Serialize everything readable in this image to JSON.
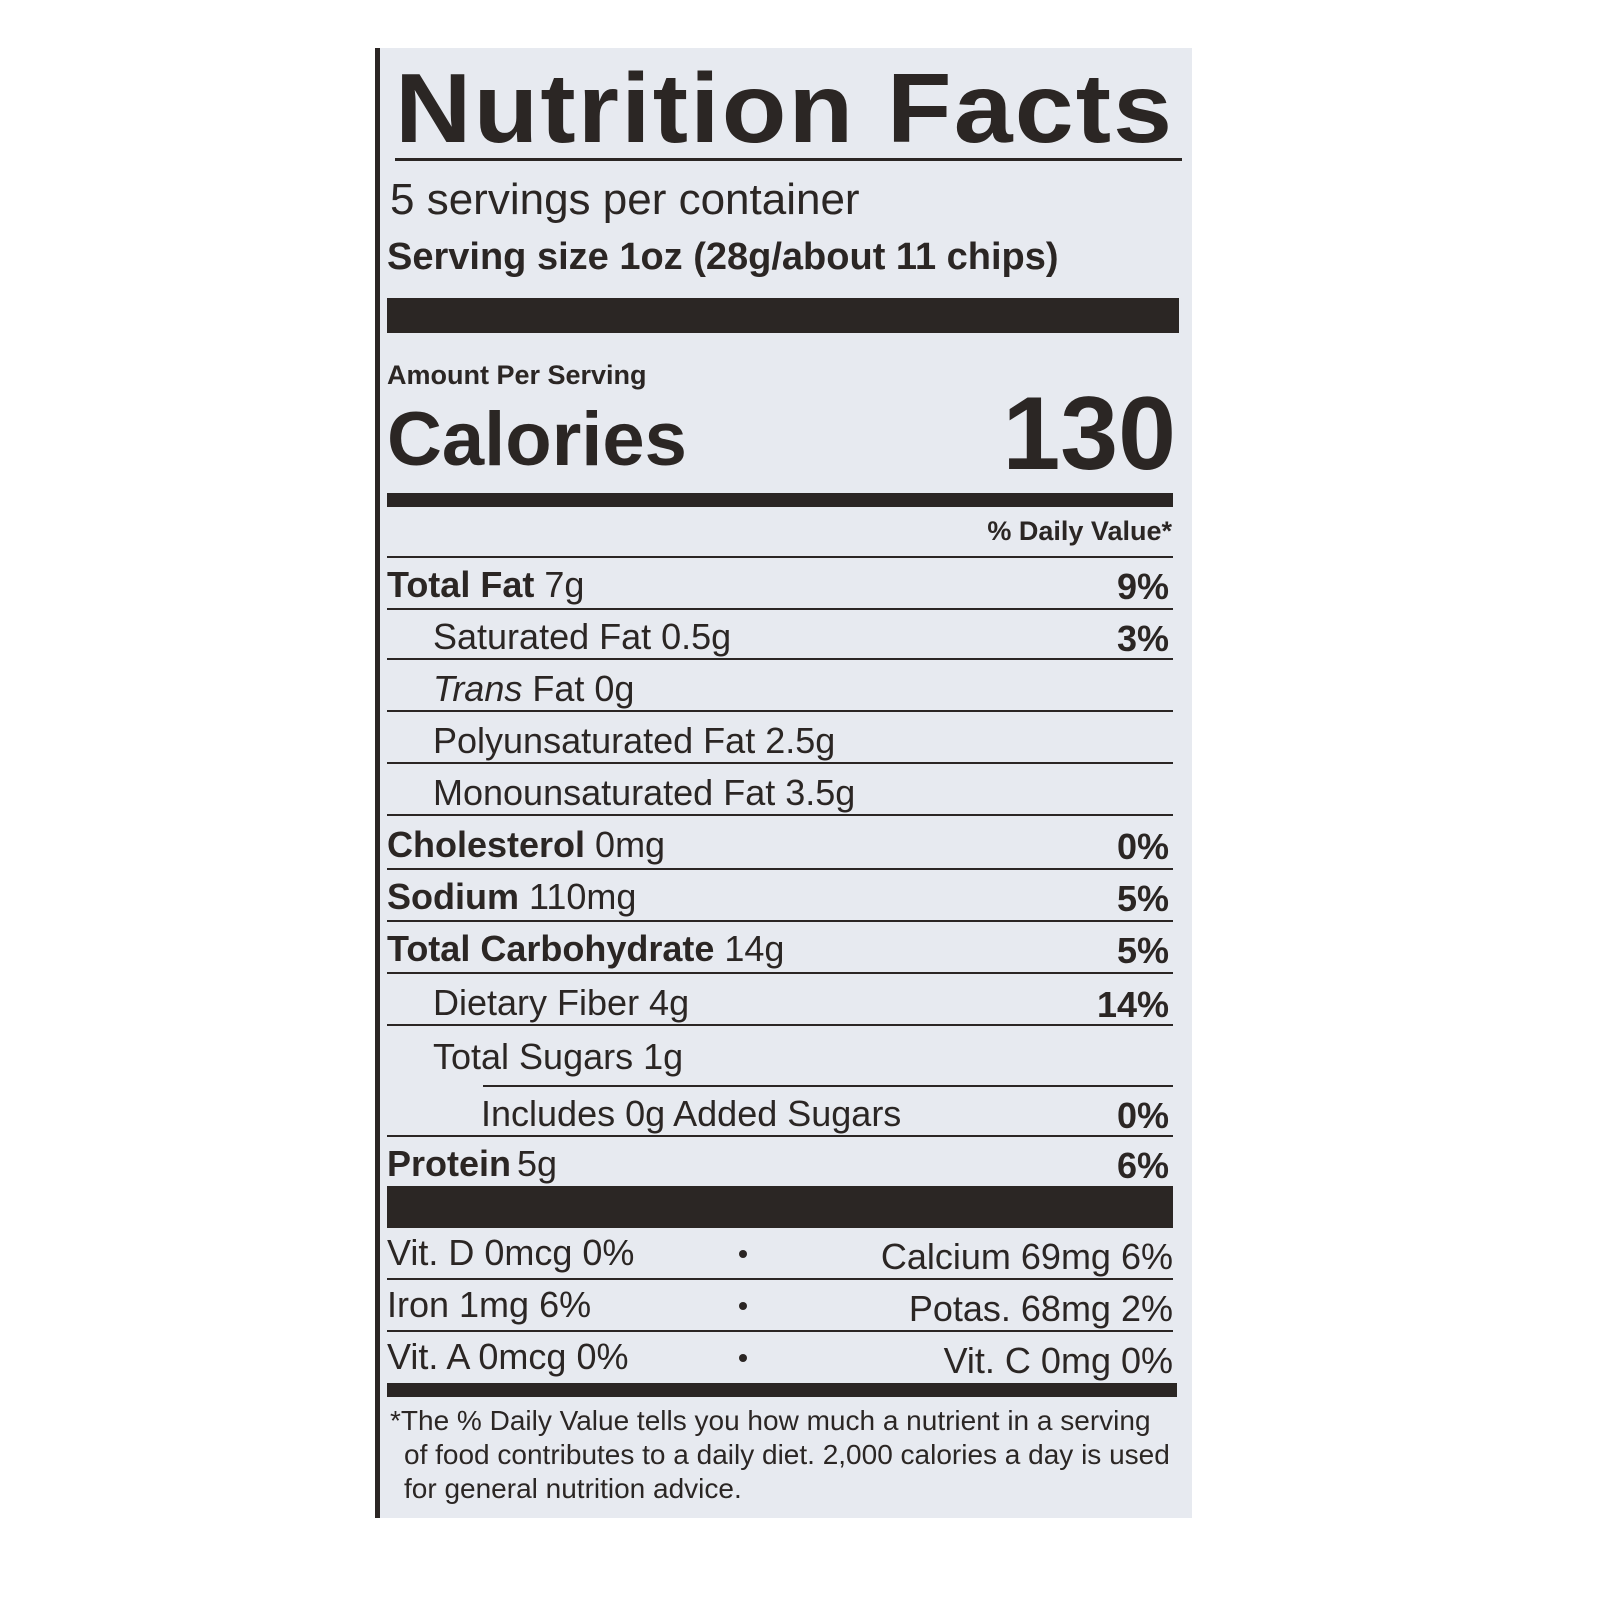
{
  "title": "Nutrition Facts",
  "servings_per_container": "5 servings per container",
  "serving_size": {
    "label": "Serving size",
    "value": "1oz (28g/about 11 chips)"
  },
  "amount_per_serving": "Amount Per Serving",
  "calories": {
    "label": "Calories",
    "value": "130"
  },
  "daily_value_header": "% Daily Value*",
  "nutrients": [
    {
      "name": "Total Fat",
      "amount": "7g",
      "dv": "9%"
    },
    {
      "label": "Saturated Fat 0.5g",
      "dv": "3%"
    },
    {
      "italic": "Trans",
      "label": "Fat 0g"
    },
    {
      "label": "Polyunsaturated Fat 2.5g"
    },
    {
      "label": "Monounsaturated Fat 3.5g"
    },
    {
      "name": "Cholesterol",
      "amount": "0mg",
      "dv": "0%"
    },
    {
      "name": "Sodium",
      "amount": "110mg",
      "dv": "5%"
    },
    {
      "name": "Total Carbohydrate",
      "amount": "14g",
      "dv": "5%"
    },
    {
      "label": "Dietary Fiber 4g",
      "dv": "14%"
    },
    {
      "label": "Total Sugars 1g"
    },
    {
      "label": "Includes 0g Added Sugars",
      "dv": "0%"
    },
    {
      "name": "Protein",
      "amount": "5g",
      "dv": "6%"
    }
  ],
  "vitamins": [
    [
      "Vit. D 0mcg 0%",
      "Calcium 69mg 6%"
    ],
    [
      "Iron 1mg 6%",
      "Potas. 68mg 2%"
    ],
    [
      "Vit. A 0mcg 0%",
      "Vit. C 0mg 0%"
    ]
  ],
  "footnote": "*The % Daily Value tells you how much a nutrient in a serving of food contributes to a daily diet. 2,000 calories a day is used for general nutrition advice."
}
